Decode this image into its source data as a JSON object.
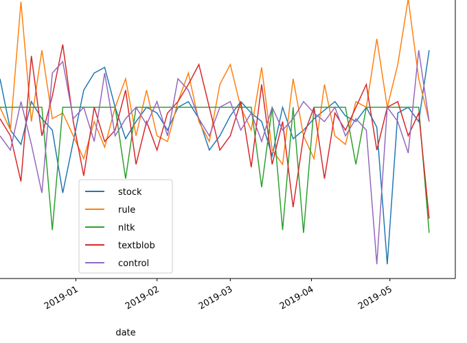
{
  "chart_data": {
    "type": "line",
    "x_label": "date",
    "x": [
      -29,
      -25,
      -21,
      -17,
      -13,
      -9,
      -5,
      -1,
      3,
      7,
      11,
      15,
      19,
      23,
      27,
      31,
      35,
      39,
      43,
      47,
      51,
      55,
      59,
      63,
      67,
      71,
      75,
      79,
      83,
      87,
      91,
      95,
      99,
      103,
      107,
      111,
      115,
      119,
      123,
      127,
      131,
      135
    ],
    "xlim": [
      -29,
      145
    ],
    "xticks": [
      {
        "value": 0,
        "label": "2019-01"
      },
      {
        "value": 31,
        "label": "2019-02"
      },
      {
        "value": 59,
        "label": "2019-03"
      },
      {
        "value": 90,
        "label": "2019-04"
      },
      {
        "value": 120,
        "label": "2019-05"
      }
    ],
    "ylim": [
      0,
      1
    ],
    "series": [
      {
        "name": "stock",
        "color": "#1f77b4",
        "values": [
          0.7,
          0.52,
          0.47,
          0.62,
          0.56,
          0.52,
          0.3,
          0.48,
          0.66,
          0.72,
          0.74,
          0.6,
          0.49,
          0.55,
          0.6,
          0.58,
          0.52,
          0.6,
          0.62,
          0.56,
          0.45,
          0.5,
          0.57,
          0.62,
          0.58,
          0.55,
          0.43,
          0.6,
          0.49,
          0.52,
          0.56,
          0.59,
          0.62,
          0.57,
          0.55,
          0.6,
          0.53,
          0.05,
          0.58,
          0.6,
          0.55,
          0.8
        ]
      },
      {
        "name": "rule",
        "color": "#ff7f0e",
        "values": [
          0.6,
          0.52,
          0.97,
          0.55,
          0.8,
          0.56,
          0.58,
          0.5,
          0.42,
          0.55,
          0.46,
          0.6,
          0.7,
          0.5,
          0.66,
          0.5,
          0.48,
          0.62,
          0.72,
          0.55,
          0.48,
          0.68,
          0.75,
          0.6,
          0.52,
          0.74,
          0.45,
          0.4,
          0.7,
          0.5,
          0.42,
          0.68,
          0.5,
          0.47,
          0.62,
          0.6,
          0.84,
          0.6,
          0.75,
          0.98,
          0.7,
          0.55
        ]
      },
      {
        "name": "nltk",
        "color": "#2ca02c",
        "values": [
          0.6,
          0.6,
          0.6,
          0.6,
          0.6,
          0.17,
          0.6,
          0.6,
          0.6,
          0.6,
          0.6,
          0.6,
          0.35,
          0.6,
          0.6,
          0.6,
          0.6,
          0.6,
          0.6,
          0.6,
          0.6,
          0.6,
          0.6,
          0.6,
          0.6,
          0.32,
          0.6,
          0.17,
          0.6,
          0.16,
          0.6,
          0.6,
          0.6,
          0.6,
          0.4,
          0.6,
          0.6,
          0.6,
          0.6,
          0.6,
          0.6,
          0.16
        ]
      },
      {
        "name": "textblob",
        "color": "#d62728",
        "values": [
          0.56,
          0.5,
          0.34,
          0.78,
          0.5,
          0.64,
          0.82,
          0.55,
          0.36,
          0.6,
          0.48,
          0.52,
          0.66,
          0.4,
          0.55,
          0.45,
          0.58,
          0.62,
          0.68,
          0.75,
          0.6,
          0.45,
          0.5,
          0.62,
          0.39,
          0.68,
          0.4,
          0.55,
          0.25,
          0.5,
          0.6,
          0.35,
          0.58,
          0.52,
          0.6,
          0.68,
          0.45,
          0.6,
          0.62,
          0.5,
          0.58,
          0.21
        ]
      },
      {
        "name": "control",
        "color": "#9467bd",
        "values": [
          0.5,
          0.45,
          0.62,
          0.47,
          0.3,
          0.72,
          0.76,
          0.56,
          0.6,
          0.48,
          0.72,
          0.5,
          0.56,
          0.6,
          0.54,
          0.62,
          0.5,
          0.7,
          0.66,
          0.56,
          0.5,
          0.6,
          0.62,
          0.52,
          0.58,
          0.48,
          0.6,
          0.52,
          0.56,
          0.62,
          0.58,
          0.55,
          0.6,
          0.5,
          0.56,
          0.52,
          0.05,
          0.6,
          0.55,
          0.44,
          0.8,
          0.55
        ]
      }
    ]
  }
}
